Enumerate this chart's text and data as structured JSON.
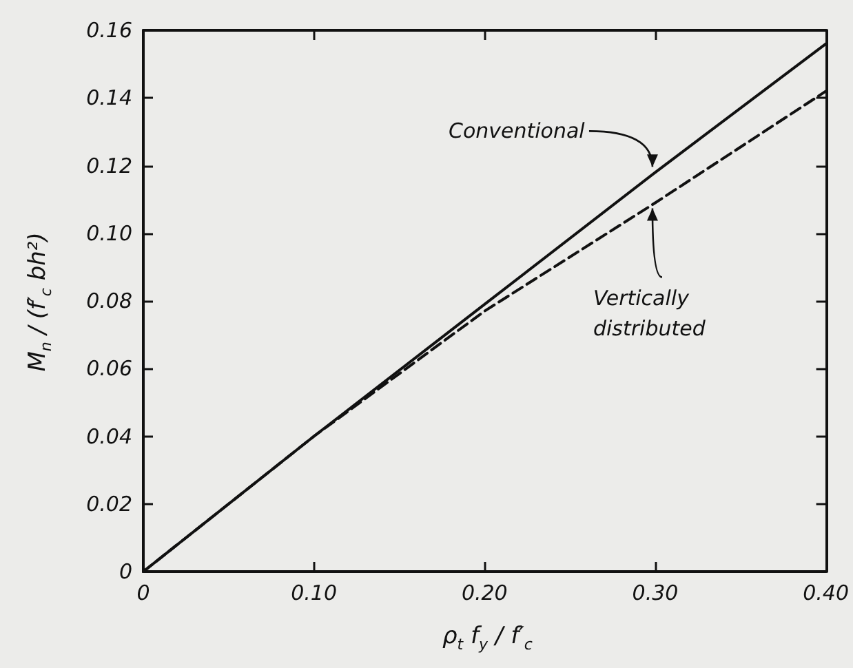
{
  "chart_data": {
    "type": "line",
    "xlabel": "ρ$_{t}$ f$_{y}$ / f′$_{c}$",
    "ylabel": "M$_{n}$ / (f′$_{c}$ bh²)",
    "x": [
      0,
      0.1,
      0.2,
      0.3,
      0.4
    ],
    "series": [
      {
        "color": "#111111",
        "line_style": "solid",
        "values": [
          0,
          0.04,
          0.079,
          0.118,
          0.156
        ]
      },
      {
        "color": "#111111",
        "line_style": "dashed",
        "values": [
          0,
          0.04,
          0.077,
          0.109,
          0.142
        ]
      }
    ],
    "xlim": [
      0,
      0.4
    ],
    "ylim": [
      0,
      0.16
    ],
    "xticks": [
      0,
      {
        "value": 0.1,
        "label": "0.10"
      },
      {
        "value": 0.2,
        "label": "0.20"
      },
      {
        "value": 0.3,
        "label": "0.30"
      },
      {
        "value": 0.4,
        "label": "0.40"
      }
    ],
    "yticks": [
      0,
      0.02,
      0.04,
      0.06,
      0.08,
      {
        "value": 0.1,
        "label": "0.10"
      },
      0.12,
      0.14,
      0.16
    ],
    "annotations": [
      {
        "text": "Conventional",
        "x": 0.3,
        "y": 0.118
      },
      {
        "text": "Vertically distributed",
        "x": 0.3,
        "y": 0.109
      }
    ],
    "grid": false,
    "marker": "none"
  }
}
